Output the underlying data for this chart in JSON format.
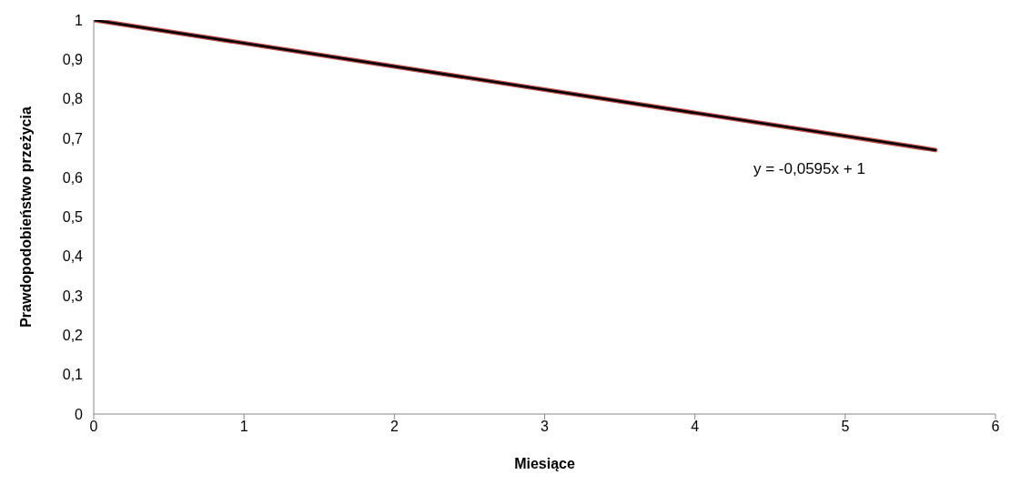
{
  "chart_data": {
    "type": "line",
    "xlabel": "Miesiące",
    "ylabel": "Prawdopodobieństwo przeżycia",
    "xlim": [
      0,
      6
    ],
    "xticks": [
      0,
      1,
      2,
      3,
      4,
      5,
      6
    ],
    "ylim": [
      0,
      1
    ],
    "yticks": [
      0,
      {
        "value": 0.1,
        "label": "0,1"
      },
      {
        "value": 0.2,
        "label": "0,2"
      },
      {
        "value": 0.3,
        "label": "0,3"
      },
      {
        "value": 0.4,
        "label": "0,4"
      },
      {
        "value": 0.5,
        "label": "0,5"
      },
      {
        "value": 0.6,
        "label": "0,6"
      },
      {
        "value": 0.7,
        "label": "0,7"
      },
      {
        "value": 0.8,
        "label": "0,8"
      },
      {
        "value": 0.9,
        "label": "0,9"
      },
      1
    ],
    "grid": false,
    "marker": "none",
    "line_style": "solid",
    "x": [
      0,
      5.6
    ],
    "series": [
      {
        "color": "#c0504d",
        "values": [
          1,
          0.67
        ]
      },
      {
        "color": "#000000",
        "values": [
          1,
          0.67
        ]
      }
    ],
    "annotations": [
      "y = -0,0595x + 1"
    ]
  }
}
